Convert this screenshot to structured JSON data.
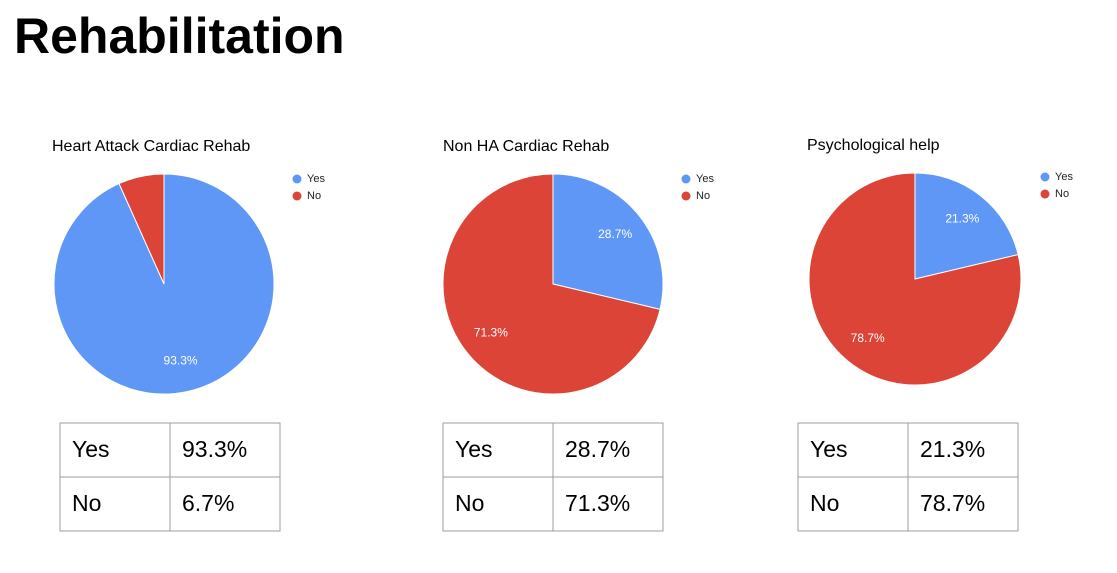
{
  "title": "Rehabilitation",
  "chart_data": [
    {
      "type": "pie",
      "title": "Heart Attack Cardiac Rehab",
      "categories": [
        "Yes",
        "No"
      ],
      "values": [
        93.3,
        6.7
      ],
      "value_labels": [
        "93.3%",
        null
      ],
      "colors": [
        "#5e97f6",
        "#db4437"
      ],
      "legend": "right"
    },
    {
      "type": "pie",
      "title": "Non HA Cardiac Rehab",
      "categories": [
        "Yes",
        "No"
      ],
      "values": [
        28.7,
        71.3
      ],
      "value_labels": [
        "28.7%",
        "71.3%"
      ],
      "colors": [
        "#5e97f6",
        "#db4437"
      ],
      "legend": "right"
    },
    {
      "type": "pie",
      "title": "Psychological help",
      "categories": [
        "Yes",
        "No"
      ],
      "values": [
        21.3,
        78.7
      ],
      "value_labels": [
        "21.3%",
        "78.7%"
      ],
      "colors": [
        "#5e97f6",
        "#db4437"
      ],
      "legend": "right"
    }
  ],
  "tables": [
    {
      "rows": [
        [
          "Yes",
          "93.3%"
        ],
        [
          "No",
          "6.7%"
        ]
      ]
    },
    {
      "rows": [
        [
          "Yes",
          "28.7%"
        ],
        [
          "No",
          "71.3%"
        ]
      ]
    },
    {
      "rows": [
        [
          "Yes",
          "21.3%"
        ],
        [
          "No",
          "78.7%"
        ]
      ]
    }
  ]
}
